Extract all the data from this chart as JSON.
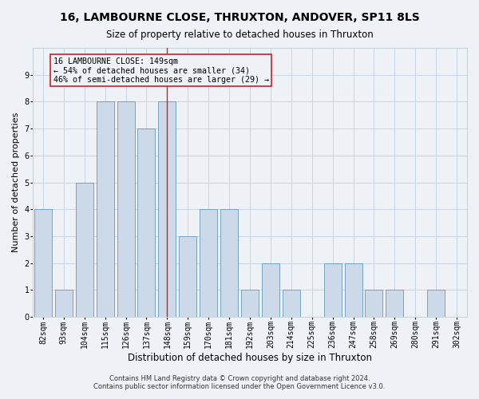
{
  "title": "16, LAMBOURNE CLOSE, THRUXTON, ANDOVER, SP11 8LS",
  "subtitle": "Size of property relative to detached houses in Thruxton",
  "xlabel": "Distribution of detached houses by size in Thruxton",
  "ylabel": "Number of detached properties",
  "categories": [
    "82sqm",
    "93sqm",
    "104sqm",
    "115sqm",
    "126sqm",
    "137sqm",
    "148sqm",
    "159sqm",
    "170sqm",
    "181sqm",
    "192sqm",
    "203sqm",
    "214sqm",
    "225sqm",
    "236sqm",
    "247sqm",
    "258sqm",
    "269sqm",
    "280sqm",
    "291sqm",
    "302sqm"
  ],
  "values": [
    4,
    1,
    5,
    8,
    8,
    7,
    8,
    3,
    4,
    4,
    1,
    2,
    1,
    0,
    2,
    2,
    1,
    1,
    0,
    1,
    0
  ],
  "bar_color": "#ccd9e8",
  "bar_edgecolor": "#6699bb",
  "highlight_index": 6,
  "highlight_line_color": "#cc2222",
  "annotation_line1": "16 LAMBOURNE CLOSE: 149sqm",
  "annotation_line2": "← 54% of detached houses are smaller (34)",
  "annotation_line3": "46% of semi-detached houses are larger (29) →",
  "annotation_box_edgecolor": "#cc2222",
  "ylim": [
    0,
    10
  ],
  "yticks": [
    0,
    1,
    2,
    3,
    4,
    5,
    6,
    7,
    8,
    9,
    10
  ],
  "footnote1": "Contains HM Land Registry data © Crown copyright and database right 2024.",
  "footnote2": "Contains public sector information licensed under the Open Government Licence v3.0.",
  "background_color": "#eef2f7",
  "grid_color": "#c8d4e0",
  "title_fontsize": 10,
  "subtitle_fontsize": 8.5,
  "ylabel_fontsize": 8,
  "xlabel_fontsize": 8.5,
  "tick_fontsize": 7,
  "footnote_fontsize": 6,
  "bar_width": 0.85
}
